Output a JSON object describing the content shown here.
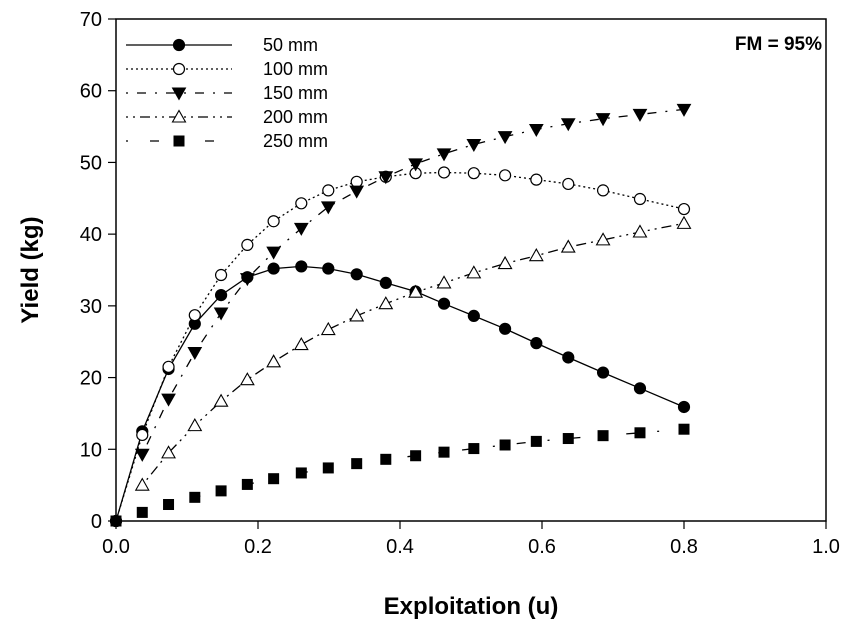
{
  "chart_data": {
    "type": "line",
    "annotation": "FM = 95%",
    "xlabel": "Exploitation (u)",
    "ylabel": "Yield (kg)",
    "xlim": [
      0.0,
      1.0
    ],
    "ylim": [
      0,
      70
    ],
    "x_ticks": [
      "0.0",
      "0.2",
      "0.4",
      "0.6",
      "0.8",
      "1.0"
    ],
    "y_ticks": [
      "0",
      "10",
      "20",
      "30",
      "40",
      "50",
      "60",
      "70"
    ],
    "grid": false,
    "legend_position": "top-left",
    "series": [
      {
        "name": "50 mm",
        "line": "solid",
        "marker": "filled-circle",
        "x": [
          0.0,
          0.037,
          0.074,
          0.111,
          0.148,
          0.185,
          0.222,
          0.261,
          0.299,
          0.339,
          0.38,
          0.422,
          0.462,
          0.504,
          0.548,
          0.592,
          0.637,
          0.686,
          0.738,
          0.8
        ],
        "y": [
          0,
          12.5,
          21.2,
          27.5,
          31.5,
          34.0,
          35.2,
          35.5,
          35.2,
          34.4,
          33.2,
          32.0,
          30.3,
          28.6,
          26.8,
          24.8,
          22.8,
          20.7,
          18.5,
          15.9
        ]
      },
      {
        "name": "100 mm",
        "line": "dotted",
        "marker": "open-circle",
        "x": [
          0.0,
          0.037,
          0.074,
          0.111,
          0.148,
          0.185,
          0.222,
          0.261,
          0.299,
          0.339,
          0.38,
          0.422,
          0.462,
          0.504,
          0.548,
          0.592,
          0.637,
          0.686,
          0.738,
          0.8
        ],
        "y": [
          0,
          12.0,
          21.5,
          28.7,
          34.3,
          38.5,
          41.8,
          44.3,
          46.1,
          47.3,
          48.0,
          48.5,
          48.6,
          48.5,
          48.2,
          47.6,
          47.0,
          46.1,
          44.9,
          43.5
        ]
      },
      {
        "name": "150 mm",
        "line": "dash-dot",
        "marker": "filled-triangle-down",
        "x": [
          0.037,
          0.074,
          0.111,
          0.148,
          0.185,
          0.222,
          0.261,
          0.299,
          0.339,
          0.38,
          0.422,
          0.462,
          0.504,
          0.548,
          0.592,
          0.637,
          0.686,
          0.738,
          0.8
        ],
        "y": [
          9.3,
          17.0,
          23.5,
          29.0,
          33.8,
          37.5,
          40.8,
          43.8,
          46.0,
          48.0,
          49.8,
          51.2,
          52.5,
          53.6,
          54.6,
          55.4,
          56.1,
          56.7,
          57.4
        ]
      },
      {
        "name": "200 mm",
        "line": "dash-dot-dot",
        "marker": "open-triangle-up",
        "x": [
          0.037,
          0.074,
          0.111,
          0.148,
          0.185,
          0.222,
          0.261,
          0.299,
          0.339,
          0.38,
          0.422,
          0.462,
          0.504,
          0.548,
          0.592,
          0.637,
          0.686,
          0.738,
          0.8
        ],
        "y": [
          5.0,
          9.5,
          13.3,
          16.7,
          19.7,
          22.2,
          24.6,
          26.7,
          28.6,
          30.3,
          31.9,
          33.2,
          34.6,
          35.9,
          37.0,
          38.2,
          39.2,
          40.3,
          41.5
        ]
      },
      {
        "name": "250 mm",
        "line": "sparse-dash-dot",
        "marker": "filled-square",
        "x": [
          0.0,
          0.037,
          0.074,
          0.111,
          0.148,
          0.185,
          0.222,
          0.261,
          0.299,
          0.339,
          0.38,
          0.422,
          0.462,
          0.504,
          0.548,
          0.592,
          0.637,
          0.686,
          0.738,
          0.8
        ],
        "y": [
          0,
          1.2,
          2.3,
          3.3,
          4.2,
          5.1,
          5.9,
          6.7,
          7.4,
          8.0,
          8.6,
          9.1,
          9.6,
          10.1,
          10.6,
          11.1,
          11.5,
          11.9,
          12.3,
          12.8
        ]
      }
    ]
  }
}
